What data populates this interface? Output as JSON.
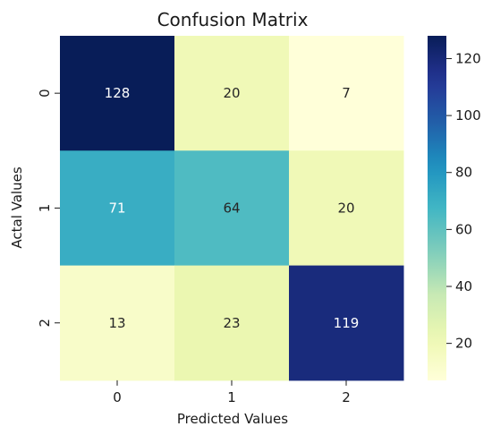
{
  "chart_data": {
    "type": "heatmap",
    "title": "Confusion Matrix",
    "xlabel": "Predicted Values",
    "ylabel": "Actal Values",
    "x_categories": [
      "0",
      "1",
      "2"
    ],
    "y_categories": [
      "0",
      "1",
      "2"
    ],
    "values": [
      [
        128,
        20,
        7
      ],
      [
        71,
        64,
        20
      ],
      [
        13,
        23,
        119
      ]
    ],
    "colormap": "YlGnBu",
    "colorbar": {
      "range": [
        7,
        128
      ],
      "ticks": [
        "20",
        "40",
        "60",
        "80",
        "100",
        "120"
      ]
    }
  }
}
